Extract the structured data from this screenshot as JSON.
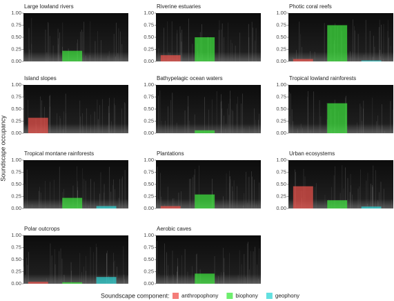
{
  "y_label": "Soundscape occupancy",
  "legend_title": "Soundscape component:",
  "components": [
    {
      "name": "anthropophony",
      "color": "#f0524c"
    },
    {
      "name": "biophony",
      "color": "#3ee83e"
    },
    {
      "name": "geophony",
      "color": "#2fd6d6"
    }
  ],
  "chart_data": [
    {
      "type": "bar",
      "title": "Large lowland rivers",
      "values": [
        0,
        0.22,
        0
      ],
      "ylim": [
        0,
        1
      ],
      "yticks": [
        {
          "value": 0,
          "label": "0.00"
        },
        {
          "value": 0.25,
          "label": "0.25"
        },
        {
          "value": 0.5,
          "label": "0.50"
        },
        {
          "value": 0.75,
          "label": "0.75"
        },
        {
          "value": 1,
          "label": "1.00"
        }
      ]
    },
    {
      "type": "bar",
      "title": "Riverine estuaries",
      "values": [
        0.13,
        0.5,
        0
      ],
      "ylim": [
        0,
        1
      ],
      "yticks": [
        {
          "value": 0,
          "label": "0.00"
        },
        {
          "value": 0.25,
          "label": "0.25"
        },
        {
          "value": 0.5,
          "label": "0.50"
        },
        {
          "value": 0.75,
          "label": "0.75"
        },
        {
          "value": 1,
          "label": "1.00"
        }
      ]
    },
    {
      "type": "bar",
      "title": "Photic coral reefs",
      "values": [
        0.05,
        0.75,
        0.02
      ],
      "ylim": [
        0,
        1
      ],
      "yticks": [
        {
          "value": 0,
          "label": "0.00"
        },
        {
          "value": 0.25,
          "label": "0.25"
        },
        {
          "value": 0.5,
          "label": "0.50"
        },
        {
          "value": 0.75,
          "label": "0.75"
        },
        {
          "value": 1,
          "label": "1.00"
        }
      ]
    },
    {
      "type": "bar",
      "title": "Island slopes",
      "values": [
        0.32,
        0,
        0
      ],
      "ylim": [
        0,
        1
      ],
      "yticks": [
        {
          "value": 0,
          "label": "0.00"
        },
        {
          "value": 0.25,
          "label": "0.25"
        },
        {
          "value": 0.5,
          "label": "0.50"
        },
        {
          "value": 0.75,
          "label": "0.75"
        },
        {
          "value": 1,
          "label": "1.00"
        }
      ]
    },
    {
      "type": "bar",
      "title": "Bathypelagic ocean waters",
      "values": [
        0,
        0.06,
        0
      ],
      "ylim": [
        0,
        1
      ],
      "yticks": [
        {
          "value": 0,
          "label": "0.00"
        },
        {
          "value": 0.25,
          "label": "0.25"
        },
        {
          "value": 0.5,
          "label": "0.50"
        },
        {
          "value": 0.75,
          "label": "0.75"
        },
        {
          "value": 1,
          "label": "1.00"
        }
      ]
    },
    {
      "type": "bar",
      "title": "Tropical lowland rainforests",
      "values": [
        0,
        0.62,
        0
      ],
      "ylim": [
        0,
        1
      ],
      "yticks": [
        {
          "value": 0,
          "label": "0.00"
        },
        {
          "value": 0.25,
          "label": "0.25"
        },
        {
          "value": 0.5,
          "label": "0.50"
        },
        {
          "value": 0.75,
          "label": "0.75"
        },
        {
          "value": 1,
          "label": "1.00"
        }
      ]
    },
    {
      "type": "bar",
      "title": "Tropical montane rainforests",
      "values": [
        0,
        0.22,
        0.05
      ],
      "ylim": [
        0,
        1
      ],
      "yticks": [
        {
          "value": 0,
          "label": "0.00"
        },
        {
          "value": 0.25,
          "label": "0.25"
        },
        {
          "value": 0.5,
          "label": "0.50"
        },
        {
          "value": 0.75,
          "label": "0.75"
        },
        {
          "value": 1,
          "label": "1.00"
        }
      ]
    },
    {
      "type": "bar",
      "title": "Plantations",
      "values": [
        0.05,
        0.29,
        0
      ],
      "ylim": [
        0,
        1
      ],
      "yticks": [
        {
          "value": 0,
          "label": "0.00"
        },
        {
          "value": 0.25,
          "label": "0.25"
        },
        {
          "value": 0.5,
          "label": "0.50"
        },
        {
          "value": 0.75,
          "label": "0.75"
        },
        {
          "value": 1,
          "label": "1.00"
        }
      ]
    },
    {
      "type": "bar",
      "title": "Urban ecosystems",
      "values": [
        0.46,
        0.17,
        0.04
      ],
      "ylim": [
        0,
        1
      ],
      "yticks": [
        {
          "value": 0,
          "label": "0.00"
        },
        {
          "value": 0.25,
          "label": "0.25"
        },
        {
          "value": 0.5,
          "label": "0.50"
        },
        {
          "value": 0.75,
          "label": "0.75"
        },
        {
          "value": 1,
          "label": "1.00"
        }
      ]
    },
    {
      "type": "bar",
      "title": "Polar outcrops",
      "values": [
        0.04,
        0.03,
        0.14
      ],
      "ylim": [
        0,
        1
      ],
      "yticks": [
        {
          "value": 0,
          "label": "0.00"
        },
        {
          "value": 0.25,
          "label": "0.25"
        },
        {
          "value": 0.5,
          "label": "0.50"
        },
        {
          "value": 0.75,
          "label": "0.75"
        },
        {
          "value": 1,
          "label": "1.00"
        }
      ]
    },
    {
      "type": "bar",
      "title": "Aerobic caves",
      "values": [
        0,
        0.21,
        0
      ],
      "ylim": [
        0,
        1
      ],
      "yticks": [
        {
          "value": 0,
          "label": "0.00"
        },
        {
          "value": 0.25,
          "label": "0.25"
        },
        {
          "value": 0.5,
          "label": "0.50"
        },
        {
          "value": 0.75,
          "label": "0.75"
        },
        {
          "value": 1,
          "label": "1.00"
        }
      ]
    }
  ]
}
